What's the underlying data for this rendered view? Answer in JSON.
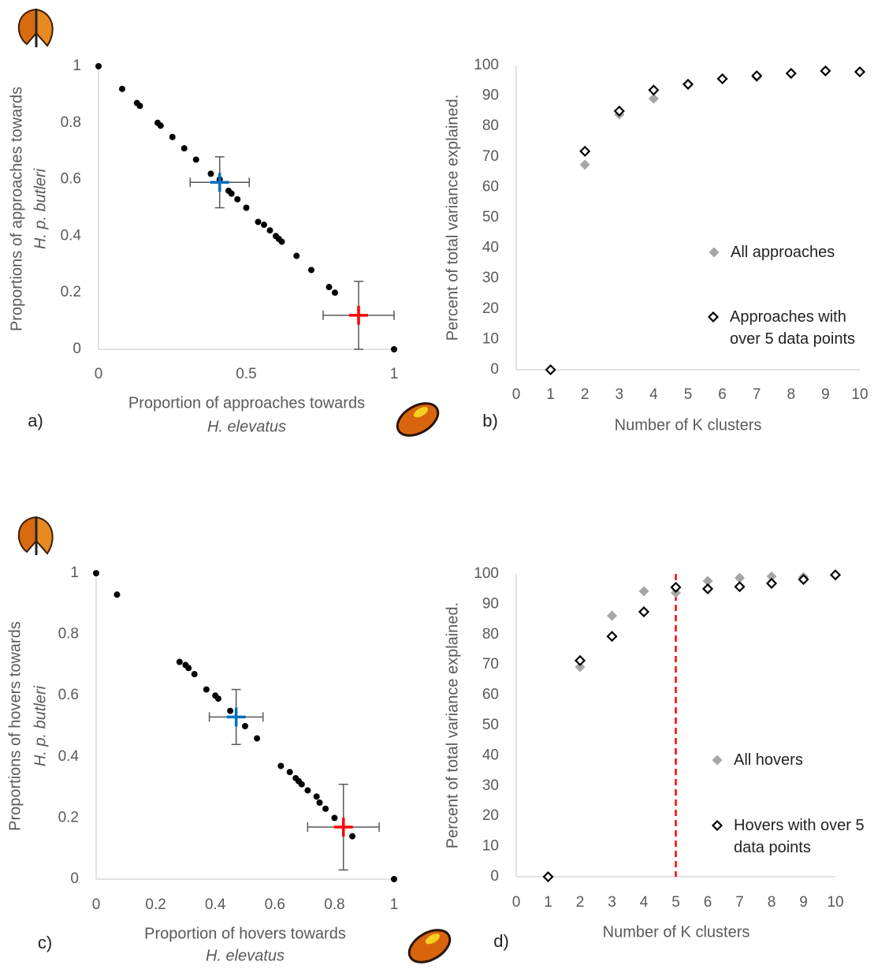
{
  "chart_data": [
    {
      "type": "scatter",
      "panel_label": "a)",
      "x_label": "Proportion of approaches towards",
      "x_label_species": "H. elevatus",
      "y_label": "Proportions of approaches towards",
      "y_label_species": "H. p. butleri",
      "xlim": [
        0,
        1
      ],
      "xticks": [
        0,
        0.5,
        1
      ],
      "ylim": [
        0,
        1
      ],
      "yticks": [
        0,
        0.2,
        0.4,
        0.6,
        0.8,
        1
      ],
      "color": "#000000",
      "x": [
        0,
        0.08,
        0.13,
        0.14,
        0.2,
        0.21,
        0.25,
        0.29,
        0.33,
        0.38,
        0.41,
        0.44,
        0.45,
        0.47,
        0.5,
        0.54,
        0.56,
        0.58,
        0.6,
        0.61,
        0.62,
        0.67,
        0.72,
        0.78,
        0.8,
        1
      ],
      "values": [
        1,
        0.92,
        0.87,
        0.86,
        0.8,
        0.79,
        0.75,
        0.71,
        0.67,
        0.62,
        0.6,
        0.56,
        0.55,
        0.53,
        0.5,
        0.45,
        0.44,
        0.42,
        0.4,
        0.39,
        0.38,
        0.33,
        0.28,
        0.22,
        0.2,
        0
      ],
      "means": [
        {
          "x": 0.41,
          "y": 0.59,
          "xerr": 0.1,
          "yerr": 0.09,
          "color": "#0070c0"
        },
        {
          "x": 0.88,
          "y": 0.12,
          "xerr": 0.12,
          "yerr": 0.12,
          "color": "#ff0000"
        }
      ]
    },
    {
      "type": "scatter",
      "panel_label": "b)",
      "x_label": "Number of K clusters",
      "y_label": "Percent of total variance explained.",
      "xlim": [
        0,
        10
      ],
      "xticks": [
        0,
        1,
        2,
        3,
        4,
        5,
        6,
        7,
        8,
        9,
        10
      ],
      "ylim": [
        0,
        100
      ],
      "yticks": [
        0,
        10,
        20,
        30,
        40,
        50,
        60,
        70,
        80,
        90,
        100
      ],
      "x": [
        1,
        2,
        3,
        4,
        5,
        6,
        7,
        8,
        9,
        10
      ],
      "series": [
        {
          "name": "All approaches",
          "color": "#a6a6a6",
          "filled": true,
          "values": [
            0,
            67.4,
            83.9,
            89.1,
            93.8,
            95.6,
            96.1,
            97.2,
            98.2,
            97.9
          ]
        },
        {
          "name": "Approaches with over 5 data points",
          "color": "#000000",
          "filled": false,
          "values": [
            0,
            71.8,
            85,
            91.9,
            93.8,
            95.6,
            96.6,
            97.4,
            98.2,
            97.9
          ]
        }
      ]
    },
    {
      "type": "scatter",
      "panel_label": "c)",
      "x_label": "Proportion of hovers towards",
      "x_label_species": "H. elevatus",
      "y_label": "Proportions of hovers towards",
      "y_label_species": "H. p. butleri",
      "xlim": [
        0,
        1
      ],
      "xticks": [
        0,
        0.2,
        0.4,
        0.6,
        0.8,
        1
      ],
      "ylim": [
        0,
        1
      ],
      "yticks": [
        0,
        0.2,
        0.4,
        0.6,
        0.8,
        1
      ],
      "color": "#000000",
      "x": [
        0,
        0.07,
        0.28,
        0.3,
        0.31,
        0.33,
        0.37,
        0.4,
        0.41,
        0.45,
        0.5,
        0.54,
        0.62,
        0.65,
        0.67,
        0.68,
        0.69,
        0.71,
        0.74,
        0.75,
        0.77,
        0.8,
        0.86,
        1
      ],
      "values": [
        1,
        0.93,
        0.71,
        0.7,
        0.69,
        0.67,
        0.62,
        0.6,
        0.59,
        0.55,
        0.5,
        0.46,
        0.37,
        0.35,
        0.33,
        0.32,
        0.31,
        0.29,
        0.27,
        0.25,
        0.23,
        0.2,
        0.14,
        0
      ],
      "means": [
        {
          "x": 0.47,
          "y": 0.53,
          "xerr": 0.09,
          "yerr": 0.09,
          "color": "#0070c0"
        },
        {
          "x": 0.83,
          "y": 0.17,
          "xerr": 0.12,
          "yerr": 0.14,
          "color": "#ff0000"
        }
      ]
    },
    {
      "type": "scatter",
      "panel_label": "d)",
      "x_label": "Number of K clusters",
      "y_label": "Percent of total variance explained.",
      "xlim": [
        0,
        10
      ],
      "xticks": [
        0,
        1,
        2,
        3,
        4,
        5,
        6,
        7,
        8,
        9,
        10
      ],
      "ylim": [
        0,
        100
      ],
      "yticks": [
        0,
        10,
        20,
        30,
        40,
        50,
        60,
        70,
        80,
        90,
        100
      ],
      "reference_x": 5,
      "reference_color": "#ff0000",
      "x": [
        1,
        2,
        3,
        4,
        5,
        6,
        7,
        8,
        9,
        10
      ],
      "series": [
        {
          "name": "All hovers",
          "color": "#a6a6a6",
          "filled": true,
          "values": [
            0,
            69.3,
            86.2,
            94.3,
            93.8,
            97.7,
            98.7,
            99.2,
            99,
            99.7
          ]
        },
        {
          "name": "Hovers with over 5 data points",
          "color": "#000000",
          "filled": false,
          "values": [
            0,
            71.4,
            79.4,
            87.5,
            95.6,
            95.1,
            95.8,
            96.9,
            98.2,
            99.7
          ]
        }
      ]
    }
  ]
}
